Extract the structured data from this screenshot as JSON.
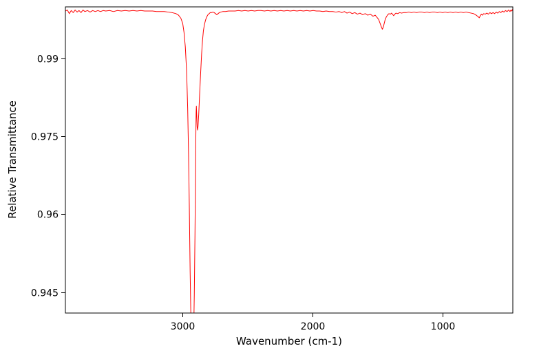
{
  "figure": {
    "background": "#ffffff"
  },
  "chart_data": {
    "type": "line",
    "title": "",
    "xlabel": "Wavenumber (cm-1)",
    "ylabel": "Relative Transmittance",
    "x_axis_reversed": true,
    "xlim": [
      3900,
      460
    ],
    "ylim": [
      0.941,
      0.9999
    ],
    "xticks": [
      {
        "value": 3000,
        "label": "3000"
      },
      {
        "value": 2000,
        "label": "2000"
      },
      {
        "value": 1000,
        "label": "1000"
      }
    ],
    "yticks": [
      {
        "value": 0.99,
        "label": "0.99"
      },
      {
        "value": 0.975,
        "label": "0.975"
      },
      {
        "value": 0.96,
        "label": "0.96"
      },
      {
        "value": 0.945,
        "label": "0.945"
      }
    ],
    "grid": false,
    "legend": null,
    "line_color": "#ff0000",
    "axis_color": "#000000",
    "peaks": [
      {
        "wavenumber": 2920,
        "transmittance": 0.933,
        "note": "strong narrow absorption, clipped at plot bottom"
      },
      {
        "wavenumber": 2884,
        "transmittance": 0.976,
        "note": "secondary absorption shoulder with small spike at 2893"
      },
      {
        "wavenumber": 1463,
        "transmittance": 0.9956,
        "note": "small absorption dip"
      }
    ],
    "series": [
      {
        "name": "spectrum",
        "points": [
          [
            3900,
            0.9991
          ],
          [
            3885,
            0.9993
          ],
          [
            3870,
            0.9986
          ],
          [
            3855,
            0.9992
          ],
          [
            3840,
            0.9988
          ],
          [
            3825,
            0.9993
          ],
          [
            3810,
            0.9989
          ],
          [
            3795,
            0.9992
          ],
          [
            3780,
            0.9988
          ],
          [
            3765,
            0.9993
          ],
          [
            3750,
            0.999
          ],
          [
            3730,
            0.9992
          ],
          [
            3710,
            0.9989
          ],
          [
            3690,
            0.9992
          ],
          [
            3670,
            0.999
          ],
          [
            3650,
            0.9992
          ],
          [
            3630,
            0.999
          ],
          [
            3610,
            0.9992
          ],
          [
            3590,
            0.9991
          ],
          [
            3560,
            0.9992
          ],
          [
            3530,
            0.999
          ],
          [
            3500,
            0.9992
          ],
          [
            3470,
            0.9991
          ],
          [
            3440,
            0.9992
          ],
          [
            3410,
            0.9991
          ],
          [
            3380,
            0.9992
          ],
          [
            3350,
            0.9991
          ],
          [
            3320,
            0.9992
          ],
          [
            3290,
            0.9991
          ],
          [
            3260,
            0.9991
          ],
          [
            3230,
            0.9991
          ],
          [
            3200,
            0.999
          ],
          [
            3170,
            0.999
          ],
          [
            3140,
            0.999
          ],
          [
            3110,
            0.9989
          ],
          [
            3080,
            0.9988
          ],
          [
            3050,
            0.9986
          ],
          [
            3030,
            0.9983
          ],
          [
            3012,
            0.9977
          ],
          [
            2998,
            0.9967
          ],
          [
            2988,
            0.995
          ],
          [
            2978,
            0.9922
          ],
          [
            2968,
            0.9875
          ],
          [
            2960,
            0.9805
          ],
          [
            2953,
            0.9715
          ],
          [
            2947,
            0.961
          ],
          [
            2941,
            0.949
          ],
          [
            2936,
            0.9415
          ],
          [
            2931,
            0.9365
          ],
          [
            2926,
            0.9338
          ],
          [
            2920,
            0.9328
          ],
          [
            2914,
            0.9368
          ],
          [
            2909,
            0.9445
          ],
          [
            2904,
            0.9555
          ],
          [
            2900,
            0.9665
          ],
          [
            2897,
            0.9752
          ],
          [
            2895,
            0.9795
          ],
          [
            2893,
            0.9808
          ],
          [
            2890,
            0.9788
          ],
          [
            2887,
            0.9768
          ],
          [
            2884,
            0.9762
          ],
          [
            2880,
            0.977
          ],
          [
            2875,
            0.9792
          ],
          [
            2869,
            0.9825
          ],
          [
            2861,
            0.9868
          ],
          [
            2853,
            0.9907
          ],
          [
            2846,
            0.9934
          ],
          [
            2839,
            0.9953
          ],
          [
            2831,
            0.9965
          ],
          [
            2822,
            0.9974
          ],
          [
            2813,
            0.998
          ],
          [
            2804,
            0.9984
          ],
          [
            2795,
            0.9986
          ],
          [
            2786,
            0.9988
          ],
          [
            2776,
            0.9988
          ],
          [
            2766,
            0.9989
          ],
          [
            2756,
            0.9988
          ],
          [
            2746,
            0.9986
          ],
          [
            2736,
            0.9984
          ],
          [
            2726,
            0.9986
          ],
          [
            2716,
            0.9988
          ],
          [
            2706,
            0.9989
          ],
          [
            2690,
            0.999
          ],
          [
            2670,
            0.999
          ],
          [
            2645,
            0.9991
          ],
          [
            2620,
            0.9991
          ],
          [
            2595,
            0.9991
          ],
          [
            2570,
            0.9992
          ],
          [
            2545,
            0.9991
          ],
          [
            2520,
            0.9992
          ],
          [
            2495,
            0.9991
          ],
          [
            2470,
            0.9992
          ],
          [
            2445,
            0.9991
          ],
          [
            2420,
            0.9992
          ],
          [
            2395,
            0.9992
          ],
          [
            2370,
            0.9991
          ],
          [
            2345,
            0.9992
          ],
          [
            2320,
            0.9991
          ],
          [
            2295,
            0.9992
          ],
          [
            2270,
            0.9991
          ],
          [
            2245,
            0.9992
          ],
          [
            2220,
            0.9991
          ],
          [
            2195,
            0.9992
          ],
          [
            2170,
            0.9991
          ],
          [
            2145,
            0.9992
          ],
          [
            2120,
            0.9991
          ],
          [
            2095,
            0.9992
          ],
          [
            2070,
            0.9991
          ],
          [
            2045,
            0.9992
          ],
          [
            2020,
            0.9991
          ],
          [
            1995,
            0.9992
          ],
          [
            1970,
            0.9991
          ],
          [
            1945,
            0.9991
          ],
          [
            1920,
            0.999
          ],
          [
            1895,
            0.9991
          ],
          [
            1870,
            0.999
          ],
          [
            1845,
            0.999
          ],
          [
            1820,
            0.9989
          ],
          [
            1795,
            0.999
          ],
          [
            1775,
            0.9988
          ],
          [
            1755,
            0.999
          ],
          [
            1735,
            0.9987
          ],
          [
            1715,
            0.9989
          ],
          [
            1695,
            0.9986
          ],
          [
            1675,
            0.9988
          ],
          [
            1655,
            0.9985
          ],
          [
            1635,
            0.9987
          ],
          [
            1615,
            0.9984
          ],
          [
            1595,
            0.9986
          ],
          [
            1575,
            0.9983
          ],
          [
            1555,
            0.9985
          ],
          [
            1535,
            0.9981
          ],
          [
            1518,
            0.9983
          ],
          [
            1505,
            0.9979
          ],
          [
            1492,
            0.9975
          ],
          [
            1480,
            0.9967
          ],
          [
            1470,
            0.996
          ],
          [
            1463,
            0.9956
          ],
          [
            1456,
            0.996
          ],
          [
            1449,
            0.9967
          ],
          [
            1441,
            0.9975
          ],
          [
            1432,
            0.998
          ],
          [
            1422,
            0.9984
          ],
          [
            1412,
            0.9986
          ],
          [
            1402,
            0.9985
          ],
          [
            1392,
            0.9987
          ],
          [
            1383,
            0.9984
          ],
          [
            1376,
            0.9982
          ],
          [
            1368,
            0.9985
          ],
          [
            1358,
            0.9987
          ],
          [
            1345,
            0.9986
          ],
          [
            1330,
            0.9988
          ],
          [
            1315,
            0.9987
          ],
          [
            1300,
            0.9988
          ],
          [
            1280,
            0.9988
          ],
          [
            1260,
            0.9989
          ],
          [
            1240,
            0.9988
          ],
          [
            1220,
            0.9989
          ],
          [
            1200,
            0.9988
          ],
          [
            1180,
            0.9989
          ],
          [
            1160,
            0.9989
          ],
          [
            1140,
            0.9988
          ],
          [
            1120,
            0.9989
          ],
          [
            1100,
            0.9988
          ],
          [
            1080,
            0.9989
          ],
          [
            1060,
            0.9989
          ],
          [
            1040,
            0.9988
          ],
          [
            1020,
            0.9989
          ],
          [
            1000,
            0.9988
          ],
          [
            980,
            0.9989
          ],
          [
            960,
            0.9988
          ],
          [
            940,
            0.9989
          ],
          [
            920,
            0.9988
          ],
          [
            900,
            0.9989
          ],
          [
            880,
            0.9988
          ],
          [
            860,
            0.9989
          ],
          [
            840,
            0.9988
          ],
          [
            820,
            0.9989
          ],
          [
            800,
            0.9988
          ],
          [
            780,
            0.9987
          ],
          [
            762,
            0.9986
          ],
          [
            748,
            0.9984
          ],
          [
            736,
            0.9982
          ],
          [
            726,
            0.998
          ],
          [
            718,
            0.9978
          ],
          [
            710,
            0.9982
          ],
          [
            702,
            0.9985
          ],
          [
            694,
            0.9983
          ],
          [
            684,
            0.9986
          ],
          [
            672,
            0.9985
          ],
          [
            660,
            0.9987
          ],
          [
            648,
            0.9985
          ],
          [
            636,
            0.9988
          ],
          [
            624,
            0.9986
          ],
          [
            612,
            0.9988
          ],
          [
            600,
            0.9986
          ],
          [
            588,
            0.9989
          ],
          [
            576,
            0.9987
          ],
          [
            564,
            0.999
          ],
          [
            552,
            0.9988
          ],
          [
            540,
            0.9991
          ],
          [
            528,
            0.9989
          ],
          [
            516,
            0.9992
          ],
          [
            504,
            0.999
          ],
          [
            492,
            0.9993
          ],
          [
            482,
            0.999
          ],
          [
            474,
            0.9993
          ],
          [
            468,
            0.9991
          ],
          [
            462,
            0.9994
          ],
          [
            460,
            0.9992
          ]
        ]
      }
    ]
  }
}
